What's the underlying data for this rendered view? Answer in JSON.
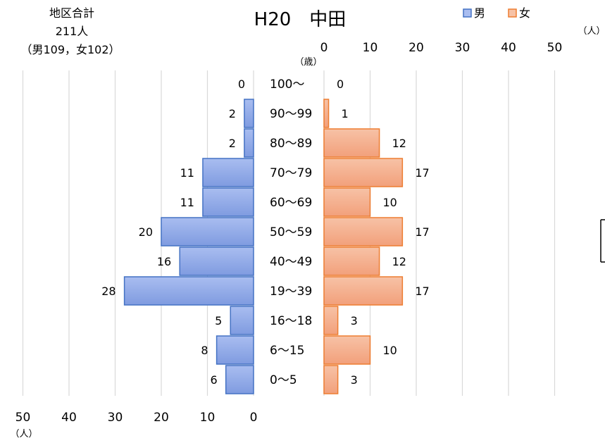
{
  "chart_data": {
    "type": "bar",
    "title": "H20　中田",
    "summary": [
      "地区合計",
      "211人",
      "（男109，女102）"
    ],
    "age_unit": "（歳）",
    "count_unit": "（人）",
    "categories": [
      "100〜",
      "90〜99",
      "80〜89",
      "70〜79",
      "60〜69",
      "50〜59",
      "40〜49",
      "19〜39",
      "16〜18",
      "6〜15",
      "0〜5"
    ],
    "series": [
      {
        "name": "男",
        "color": "#4472C4",
        "values": [
          0,
          2,
          2,
          11,
          11,
          20,
          16,
          28,
          5,
          8,
          6
        ]
      },
      {
        "name": "女",
        "color": "#ED7D31",
        "values": [
          0,
          1,
          12,
          17,
          10,
          17,
          12,
          17,
          3,
          10,
          3
        ]
      }
    ],
    "male_axis_ticks": [
      "50",
      "40",
      "30",
      "20",
      "10",
      "0"
    ],
    "female_axis_ticks": [
      "0",
      "10",
      "20",
      "30",
      "40",
      "50"
    ],
    "xlim": [
      0,
      50
    ],
    "grid": true,
    "legend_position": "top-right"
  }
}
